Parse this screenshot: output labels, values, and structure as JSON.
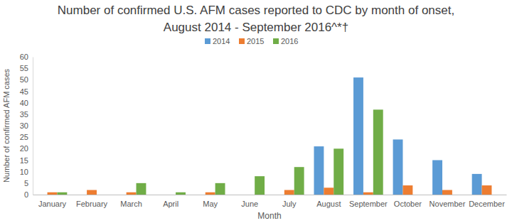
{
  "chart_data": {
    "type": "bar",
    "title": [
      "Number of confirmed U.S. AFM cases reported to CDC by month of onset,",
      "August 2014 - September 2016^*†"
    ],
    "x_label": "Month",
    "y_label": "Number of confirmed AFM cases",
    "categories": [
      "January",
      "February",
      "March",
      "April",
      "May",
      "June",
      "July",
      "August",
      "September",
      "October",
      "November",
      "December"
    ],
    "series": [
      {
        "name": "2014",
        "color": "#5b9bd5",
        "values": [
          null,
          null,
          null,
          null,
          null,
          null,
          null,
          21,
          51,
          24,
          15,
          9
        ]
      },
      {
        "name": "2015",
        "color": "#ed7d31",
        "values": [
          1,
          2,
          1,
          0,
          1,
          0,
          2,
          3,
          1,
          4,
          2,
          4
        ]
      },
      {
        "name": "2016",
        "color": "#70ad47",
        "values": [
          1,
          0,
          5,
          1,
          5,
          8,
          12,
          20,
          37,
          null,
          null,
          null
        ]
      }
    ],
    "ylim": [
      0,
      60
    ],
    "yticks": [
      0,
      5,
      10,
      15,
      20,
      25,
      30,
      35,
      40,
      45,
      50,
      55,
      60
    ],
    "grid": false,
    "legend": "top"
  }
}
